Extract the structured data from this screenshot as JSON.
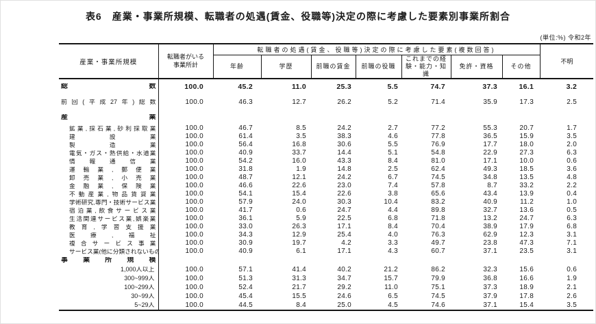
{
  "title": "表6　産業・事業所規模、転職者の処遇(賃金、役職等)決定の際に考慮した要素別事業所割合",
  "unit_note": "(単位:%) 令和2年",
  "colors": {
    "text": "#1a1a1a",
    "rule": "#151515"
  },
  "table": {
    "col_headers": {
      "industry_size": "産業・事業所規模",
      "total_with_jobchangers": "転職者がいる\n事業所計",
      "factors_group": "転職者の処遇(賃金、役職等)決定の際に考慮した要素(複数回答)",
      "factors": [
        "年齢",
        "学歴",
        "前職の賃金",
        "前職の役職",
        "これまでの経験・能力・知識",
        "免許・資格",
        "その他"
      ],
      "unknown": "不明"
    },
    "rows": [
      {
        "label": "総数",
        "style": "total",
        "values": [
          "100.0",
          "45.2",
          "11.0",
          "25.3",
          "5.5",
          "74.7",
          "37.3",
          "16.1",
          "3.2"
        ]
      },
      {
        "label": "前回(平成27年)総数",
        "style": "prev",
        "values": [
          "100.0",
          "46.3",
          "12.7",
          "26.2",
          "5.2",
          "71.4",
          "35.9",
          "17.3",
          "2.5"
        ]
      },
      {
        "label": "産業",
        "style": "sec-industry",
        "values": null
      },
      {
        "label": "鉱業,採石業,砂利採取業",
        "style": "industry",
        "values": [
          "100.0",
          "46.7",
          "8.5",
          "24.2",
          "2.7",
          "77.2",
          "55.3",
          "20.7",
          "1.7"
        ]
      },
      {
        "label": "建設業",
        "style": "industry",
        "values": [
          "100.0",
          "61.4",
          "3.5",
          "38.3",
          "4.6",
          "77.8",
          "36.5",
          "15.9",
          "3.5"
        ]
      },
      {
        "label": "製造業",
        "style": "industry",
        "values": [
          "100.0",
          "56.4",
          "16.8",
          "30.6",
          "5.5",
          "76.9",
          "17.7",
          "18.0",
          "2.0"
        ]
      },
      {
        "label": "電気・ガス・熱供給・水道業",
        "style": "industry",
        "values": [
          "100.0",
          "40.9",
          "33.7",
          "14.4",
          "5.1",
          "54.8",
          "22.9",
          "27.3",
          "6.3"
        ]
      },
      {
        "label": "情報通信業",
        "style": "industry",
        "values": [
          "100.0",
          "54.2",
          "16.0",
          "43.3",
          "8.4",
          "81.0",
          "17.1",
          "10.0",
          "0.6"
        ]
      },
      {
        "label": "運輸業,郵便業",
        "style": "industry",
        "values": [
          "100.0",
          "31.8",
          "1.9",
          "14.8",
          "2.5",
          "62.4",
          "49.3",
          "18.5",
          "3.6"
        ]
      },
      {
        "label": "卸売業,小売業",
        "style": "industry",
        "values": [
          "100.0",
          "48.7",
          "12.1",
          "24.2",
          "6.7",
          "74.5",
          "34.8",
          "13.5",
          "4.8"
        ]
      },
      {
        "label": "金融業,保険業",
        "style": "industry",
        "values": [
          "100.0",
          "46.6",
          "22.6",
          "23.0",
          "7.4",
          "57.8",
          "8.7",
          "33.2",
          "2.2"
        ]
      },
      {
        "label": "不動産業,物品賃貸業",
        "style": "industry",
        "values": [
          "100.0",
          "54.1",
          "15.4",
          "22.6",
          "3.8",
          "65.6",
          "43.4",
          "13.9",
          "0.4"
        ]
      },
      {
        "label": "学術研究,専門・技術サービス業",
        "style": "industry",
        "values": [
          "100.0",
          "57.9",
          "24.0",
          "30.3",
          "10.4",
          "83.2",
          "40.9",
          "11.2",
          "1.0"
        ]
      },
      {
        "label": "宿泊業,飲食サービス業",
        "style": "industry",
        "values": [
          "100.0",
          "41.7",
          "0.6",
          "24.7",
          "4.4",
          "89.8",
          "32.7",
          "13.6",
          "0.5"
        ]
      },
      {
        "label": "生活関連サービス業,娯楽業",
        "style": "industry",
        "values": [
          "100.0",
          "36.1",
          "5.9",
          "22.5",
          "6.8",
          "71.8",
          "13.2",
          "24.7",
          "6.3"
        ]
      },
      {
        "label": "教育,学習支援業",
        "style": "industry",
        "values": [
          "100.0",
          "33.0",
          "26.3",
          "17.1",
          "8.4",
          "70.4",
          "38.9",
          "17.9",
          "6.8"
        ]
      },
      {
        "label": "医療,福祉",
        "style": "industry",
        "values": [
          "100.0",
          "34.3",
          "12.9",
          "25.4",
          "4.0",
          "76.3",
          "62.9",
          "12.3",
          "3.1"
        ]
      },
      {
        "label": "複合サービス事業",
        "style": "industry",
        "values": [
          "100.0",
          "30.9",
          "19.7",
          "4.2",
          "3.3",
          "49.7",
          "23.8",
          "47.3",
          "7.1"
        ]
      },
      {
        "label": "サービス業(他に分類されないもの)",
        "style": "industry",
        "values": [
          "100.0",
          "40.9",
          "6.1",
          "17.1",
          "4.3",
          "60.7",
          "37.1",
          "23.5",
          "3.1"
        ]
      },
      {
        "label": "事業所規模",
        "style": "sec-size",
        "values": null
      },
      {
        "label": "1,000人以上",
        "style": "size",
        "values": [
          "100.0",
          "57.1",
          "41.4",
          "40.2",
          "21.2",
          "86.2",
          "32.3",
          "15.6",
          "0.6"
        ]
      },
      {
        "label": "300~999人",
        "style": "size",
        "values": [
          "100.0",
          "51.3",
          "31.3",
          "34.7",
          "15.7",
          "79.9",
          "36.8",
          "16.6",
          "1.9"
        ]
      },
      {
        "label": "100~299人",
        "style": "size",
        "values": [
          "100.0",
          "52.4",
          "21.7",
          "29.2",
          "11.0",
          "75.1",
          "37.3",
          "18.9",
          "2.1"
        ]
      },
      {
        "label": "30~99人",
        "style": "size",
        "values": [
          "100.0",
          "45.4",
          "15.5",
          "24.6",
          "6.5",
          "74.5",
          "37.9",
          "17.8",
          "2.6"
        ]
      },
      {
        "label": "5~29人",
        "style": "size",
        "values": [
          "100.0",
          "44.5",
          "8.4",
          "25.0",
          "4.5",
          "74.6",
          "37.1",
          "15.4",
          "3.5"
        ]
      }
    ]
  }
}
